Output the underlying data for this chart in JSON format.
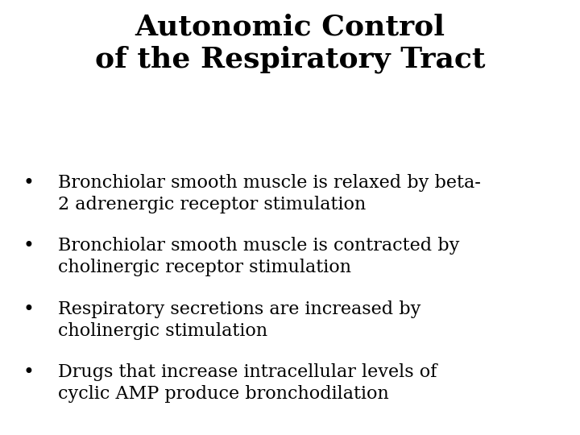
{
  "title_line1": "Autonomic Control",
  "title_line2": "of the Respiratory Tract",
  "bullet_points": [
    [
      "Bronchiolar smooth muscle is relaxed by beta-",
      "2 adrenergic receptor stimulation"
    ],
    [
      "Bronchiolar smooth muscle is contracted by",
      "cholinergic receptor stimulation"
    ],
    [
      "Respiratory secretions are increased by",
      "cholinergic stimulation"
    ],
    [
      "Drugs that increase intracellular levels of",
      "cyclic AMP produce bronchodilation"
    ]
  ],
  "background_color": "#ffffff",
  "text_color": "#000000",
  "title_fontsize": 26,
  "body_fontsize": 16,
  "bullet_char": "•"
}
